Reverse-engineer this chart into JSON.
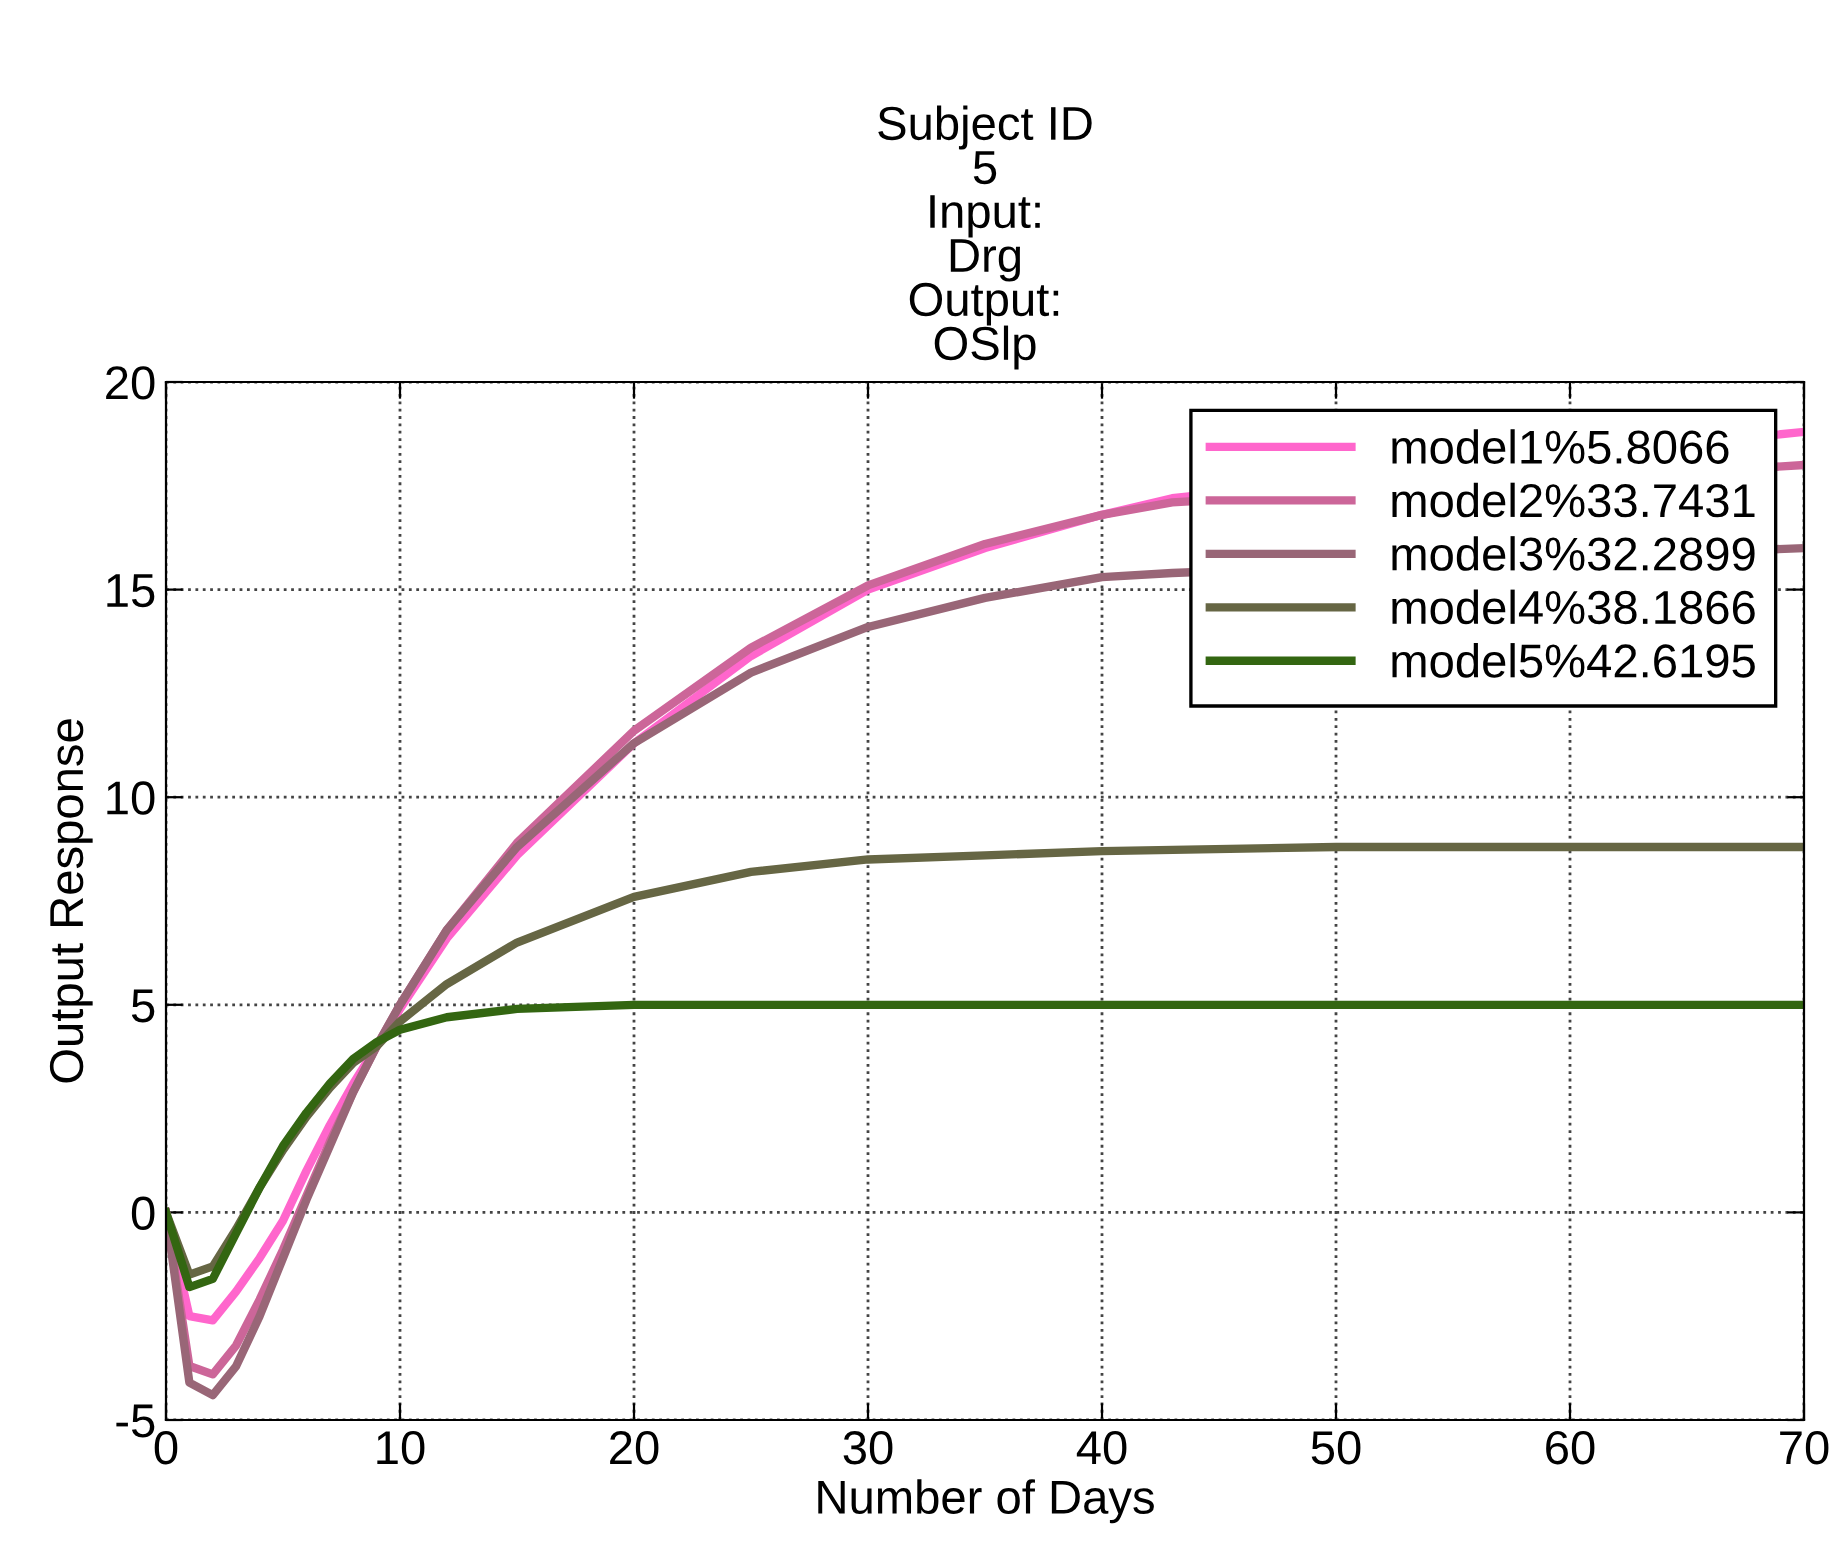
{
  "chart_data": {
    "type": "line",
    "title": "Subject ID\n5\nInput:\nDrg\nOutput:\nOSlp",
    "xlabel": "Number of Days",
    "ylabel": "Output Response",
    "x": [
      0,
      1,
      2,
      3,
      4,
      5,
      6,
      7,
      8,
      9,
      10,
      12,
      15,
      20,
      25,
      30,
      35,
      40,
      50,
      60,
      70
    ],
    "series": [
      {
        "name": "model1%5.8066",
        "color": "#ff66cc",
        "x": [
          0,
          1,
          2,
          3,
          4,
          5,
          6,
          7,
          8,
          9,
          10,
          12,
          15,
          20,
          25,
          30,
          35,
          40,
          43,
          70
        ],
        "values": [
          0,
          -2.5,
          -2.6,
          -1.9,
          -1.1,
          -0.2,
          1.0,
          2.1,
          3.1,
          4.0,
          4.9,
          6.6,
          8.6,
          11.3,
          13.4,
          15.0,
          16.0,
          16.8,
          17.2,
          18.8
        ]
      },
      {
        "name": "model2%33.7431",
        "color": "#cc6699",
        "x": [
          0,
          1,
          2,
          3,
          4,
          5,
          6,
          7,
          8,
          9,
          10,
          12,
          15,
          20,
          25,
          30,
          35,
          40,
          43,
          70
        ],
        "values": [
          0,
          -3.7,
          -3.9,
          -3.2,
          -2.1,
          -0.9,
          0.4,
          1.7,
          2.9,
          4.0,
          5.0,
          6.8,
          8.9,
          11.6,
          13.6,
          15.1,
          16.1,
          16.8,
          17.1,
          18.0
        ]
      },
      {
        "name": "model3%32.2899",
        "color": "#996677",
        "x": [
          0,
          1,
          2,
          3,
          4,
          5,
          6,
          7,
          8,
          9,
          10,
          12,
          15,
          20,
          25,
          30,
          35,
          40,
          43,
          70
        ],
        "values": [
          0,
          -4.1,
          -4.4,
          -3.7,
          -2.5,
          -1.1,
          0.3,
          1.6,
          2.9,
          4.0,
          5.0,
          6.8,
          8.8,
          11.3,
          13.0,
          14.1,
          14.8,
          15.3,
          15.4,
          16.0
        ]
      },
      {
        "name": "model4%38.1866",
        "color": "#666644",
        "values": [
          0,
          -1.5,
          -1.3,
          -0.4,
          0.6,
          1.5,
          2.3,
          3.0,
          3.6,
          4.0,
          4.6,
          5.5,
          6.5,
          7.6,
          8.2,
          8.5,
          8.6,
          8.7,
          8.8,
          8.8,
          8.8
        ]
      },
      {
        "name": "model5%42.6195",
        "color": "#336611",
        "values": [
          0,
          -1.8,
          -1.6,
          -0.5,
          0.6,
          1.6,
          2.4,
          3.1,
          3.7,
          4.1,
          4.4,
          4.7,
          4.9,
          5.0,
          5.0,
          5.0,
          5.0,
          5.0,
          5.0,
          5.0,
          5.0
        ]
      }
    ],
    "xlim": [
      0,
      70
    ],
    "xticks": [
      0,
      10,
      20,
      30,
      40,
      50,
      60,
      70
    ],
    "ylim": [
      -5,
      20
    ],
    "yticks": [
      -5,
      0,
      5,
      10,
      15,
      20
    ],
    "grid": true,
    "legend": "top right",
    "line_style": "solid"
  }
}
